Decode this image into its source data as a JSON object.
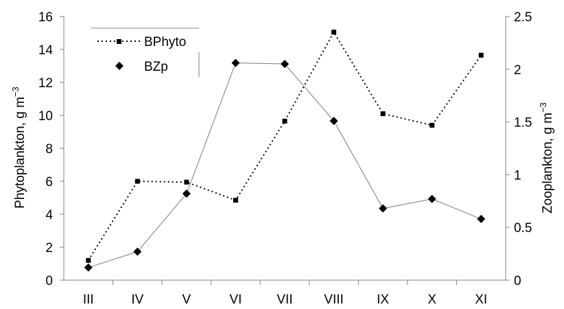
{
  "chart_data": {
    "type": "line",
    "categories": [
      "III",
      "IV",
      "V",
      "VI",
      "VII",
      "VIII",
      "IX",
      "X",
      "XI"
    ],
    "series": [
      {
        "name": "BPhyto",
        "axis": "left",
        "line_style": "dotted",
        "marker": "square",
        "values": [
          1.2,
          6.0,
          5.95,
          4.85,
          9.65,
          15.05,
          10.1,
          9.4,
          13.65
        ]
      },
      {
        "name": "BZp",
        "axis": "right",
        "line_style": "solid-thin",
        "marker": "diamond",
        "values": [
          0.12,
          0.27,
          0.82,
          2.06,
          2.05,
          1.51,
          0.68,
          0.77,
          0.58
        ]
      }
    ],
    "y_left": {
      "label": "Phytoplankton, g m",
      "label_sup": "−3",
      "ylim": [
        0,
        16
      ],
      "ticks": [
        "0",
        "2",
        "4",
        "6",
        "8",
        "10",
        "12",
        "14",
        "16"
      ]
    },
    "y_right": {
      "label": "Zooplankton, g m",
      "label_sup": "−3",
      "ylim": [
        0,
        2.5
      ],
      "ticks": [
        "0",
        "0.5",
        "1",
        "1.5",
        "2",
        "2.5"
      ]
    },
    "legend": {
      "placement": "top-left"
    },
    "grid": false,
    "colors": {
      "axis": "#808080",
      "series": "#000000"
    }
  }
}
